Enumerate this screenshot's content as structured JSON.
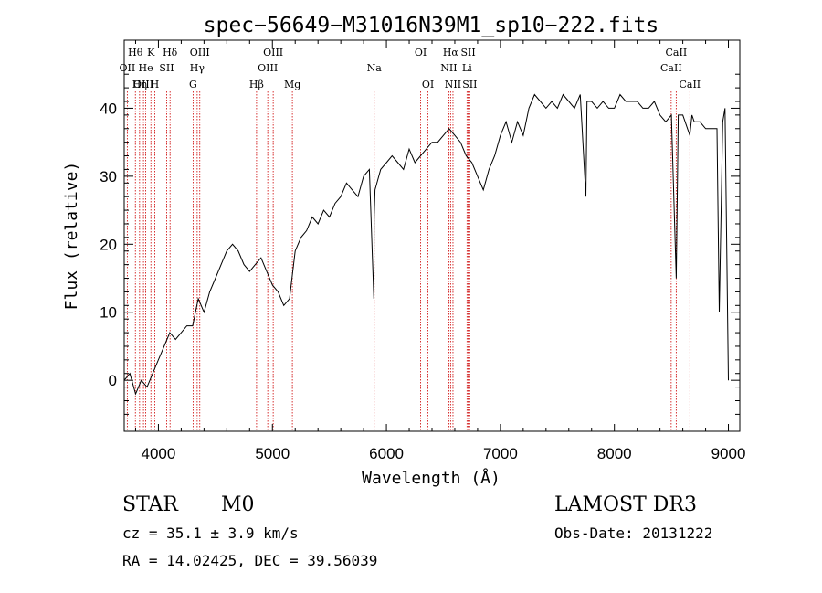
{
  "chart_data": {
    "type": "line",
    "title": "spec−56649−M31016N39M1_sp10−222.fits",
    "xlabel": "Wavelength (Å)",
    "ylabel": "Flux (relative)",
    "xlim": [
      3700,
      9100
    ],
    "ylim": [
      -7.5,
      50
    ],
    "x_ticks": [
      4000,
      5000,
      6000,
      7000,
      8000,
      9000
    ],
    "y_ticks": [
      0,
      10,
      20,
      30,
      40
    ],
    "series": [
      {
        "name": "flux",
        "x": [
          3700,
          3750,
          3800,
          3850,
          3900,
          3950,
          4000,
          4050,
          4100,
          4150,
          4200,
          4250,
          4300,
          4350,
          4400,
          4450,
          4500,
          4550,
          4600,
          4650,
          4700,
          4750,
          4800,
          4850,
          4900,
          4950,
          5000,
          5050,
          5100,
          5150,
          5200,
          5250,
          5300,
          5350,
          5400,
          5450,
          5500,
          5550,
          5600,
          5650,
          5700,
          5750,
          5800,
          5850,
          5890,
          5893,
          5900,
          5950,
          6000,
          6050,
          6100,
          6150,
          6200,
          6250,
          6300,
          6350,
          6400,
          6450,
          6500,
          6550,
          6600,
          6650,
          6700,
          6750,
          6800,
          6850,
          6900,
          6950,
          7000,
          7050,
          7100,
          7150,
          7200,
          7250,
          7300,
          7350,
          7400,
          7450,
          7500,
          7550,
          7600,
          7650,
          7700,
          7750,
          7760,
          7800,
          7850,
          7900,
          7950,
          8000,
          8050,
          8100,
          8150,
          8200,
          8250,
          8300,
          8350,
          8400,
          8450,
          8500,
          8542,
          8560,
          8600,
          8662,
          8680,
          8700,
          8750,
          8800,
          8850,
          8900,
          8920,
          8950,
          8970,
          9000
        ],
        "y": [
          0,
          1,
          -2,
          0,
          -1,
          1,
          3,
          5,
          7,
          6,
          7,
          8,
          8,
          12,
          10,
          13,
          15,
          17,
          19,
          20,
          19,
          17,
          16,
          17,
          18,
          16,
          14,
          13,
          11,
          12,
          19,
          21,
          22,
          24,
          23,
          25,
          24,
          26,
          27,
          29,
          28,
          27,
          30,
          31,
          12,
          24,
          28,
          31,
          32,
          33,
          32,
          31,
          34,
          32,
          33,
          34,
          35,
          35,
          36,
          37,
          36,
          35,
          33,
          32,
          30,
          28,
          31,
          33,
          36,
          38,
          35,
          38,
          36,
          40,
          42,
          41,
          40,
          41,
          40,
          42,
          41,
          40,
          42,
          27,
          41,
          41,
          40,
          41,
          40,
          40,
          42,
          41,
          41,
          41,
          40,
          40,
          41,
          39,
          38,
          39,
          15,
          39,
          39,
          36,
          39,
          38,
          38,
          37,
          37,
          37,
          10,
          38,
          40,
          0
        ]
      }
    ],
    "lines": [
      {
        "label": "Hθ",
        "x": 3798,
        "row": 1
      },
      {
        "label": "OII",
        "x": 3727,
        "row": 2
      },
      {
        "label": "OIII",
        "x": 3869,
        "row": 3
      },
      {
        "label": "He",
        "x": 3889,
        "row": 2
      },
      {
        "label": "K",
        "x": 3934,
        "row": 1
      },
      {
        "label": "Hη",
        "x": 3835,
        "row": 3
      },
      {
        "label": "SII",
        "x": 4072,
        "row": 2
      },
      {
        "label": "H",
        "x": 3968,
        "row": 3
      },
      {
        "label": "Hδ",
        "x": 4102,
        "row": 1
      },
      {
        "label": "OIII",
        "x": 4363,
        "row": 1
      },
      {
        "label": "Hγ",
        "x": 4340,
        "row": 2
      },
      {
        "label": "G",
        "x": 4304,
        "row": 3
      },
      {
        "label": "Hβ",
        "x": 4861,
        "row": 3
      },
      {
        "label": "OIII",
        "x": 5007,
        "row": 1
      },
      {
        "label": "OIII",
        "x": 4959,
        "row": 2
      },
      {
        "label": "Mg",
        "x": 5175,
        "row": 3
      },
      {
        "label": "Na",
        "x": 5893,
        "row": 2
      },
      {
        "label": "OI",
        "x": 6300,
        "row": 1
      },
      {
        "label": "OI",
        "x": 6364,
        "row": 3
      },
      {
        "label": "Hα",
        "x": 6563,
        "row": 1
      },
      {
        "label": "NII",
        "x": 6548,
        "row": 2
      },
      {
        "label": "NII",
        "x": 6584,
        "row": 3
      },
      {
        "label": "SII",
        "x": 6717,
        "row": 1
      },
      {
        "label": "Li",
        "x": 6707,
        "row": 2
      },
      {
        "label": "SII",
        "x": 6731,
        "row": 3
      },
      {
        "label": "CaII",
        "x": 8498,
        "row": 2
      },
      {
        "label": "CaII",
        "x": 8542,
        "row": 1
      },
      {
        "label": "CaII",
        "x": 8662,
        "row": 3
      }
    ]
  },
  "info": {
    "class_label": "STAR",
    "subclass": "M0",
    "survey": "LAMOST DR3",
    "cz": "cz = 35.1 ± 3.9 km/s",
    "obs_date": "Obs-Date: 20131222",
    "coords": "RA =  14.02425, DEC =  39.56039"
  },
  "colors": {
    "line_marker": "#cc0000",
    "spectrum": "#000000",
    "background": "#ffffff"
  }
}
